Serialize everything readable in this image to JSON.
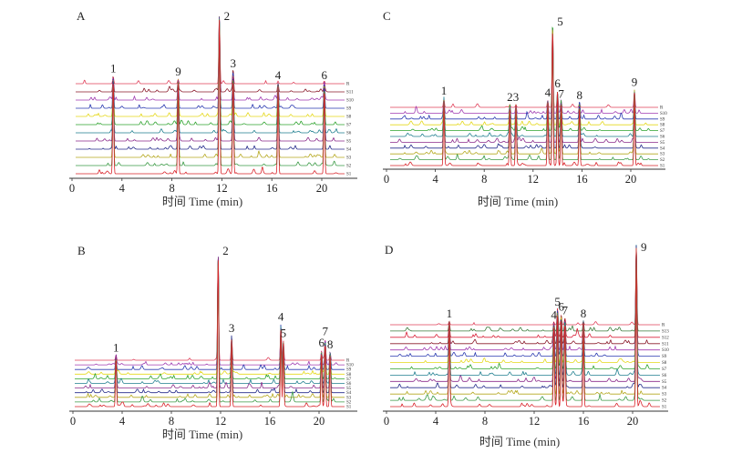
{
  "chart_data": [
    {
      "type": "line",
      "title": "A",
      "xlabel": "时间 Time (min)",
      "xlim": [
        0,
        22
      ],
      "xticks": [
        0,
        4,
        8,
        12,
        16,
        20
      ],
      "series": [
        "S1",
        "S2",
        "S3",
        "S4",
        "S5",
        "S6",
        "S7",
        "S8",
        "S9",
        "S10",
        "S11",
        "R"
      ],
      "peaks": [
        {
          "label": "1",
          "time": 3.3,
          "rel_intensity": 0.6
        },
        {
          "label": "9",
          "time": 8.5,
          "rel_intensity": 0.58
        },
        {
          "label": "2",
          "time": 11.8,
          "rel_intensity": 1.0
        },
        {
          "label": "3",
          "time": 12.9,
          "rel_intensity": 0.63
        },
        {
          "label": "4",
          "time": 16.5,
          "rel_intensity": 0.56
        },
        {
          "label": "6",
          "time": 20.2,
          "rel_intensity": 0.56
        }
      ]
    },
    {
      "type": "line",
      "title": "B",
      "xlabel": "时间 Time (min)",
      "xlim": [
        0,
        22
      ],
      "xticks": [
        0,
        4,
        8,
        12,
        16,
        20
      ],
      "series": [
        "S1",
        "S2",
        "S3",
        "S4",
        "S5",
        "S6",
        "S7",
        "S8",
        "S9",
        "S10",
        "R"
      ],
      "peaks": [
        {
          "label": "1",
          "time": 3.5,
          "rel_intensity": 0.32
        },
        {
          "label": "2",
          "time": 11.8,
          "rel_intensity": 1.0
        },
        {
          "label": "3",
          "time": 12.9,
          "rel_intensity": 0.44
        },
        {
          "label": "4",
          "time": 16.9,
          "rel_intensity": 0.51
        },
        {
          "label": "5",
          "time": 17.1,
          "rel_intensity": 0.41
        },
        {
          "label": "6",
          "time": 20.2,
          "rel_intensity": 0.35
        },
        {
          "label": "7",
          "time": 20.5,
          "rel_intensity": 0.42
        },
        {
          "label": "8",
          "time": 20.9,
          "rel_intensity": 0.34
        }
      ]
    },
    {
      "type": "line",
      "title": "C",
      "xlabel": "时间 Time (min)",
      "xlim": [
        0,
        23
      ],
      "xticks": [
        0,
        4,
        8,
        12,
        16,
        20
      ],
      "series": [
        "S1",
        "S2",
        "S3",
        "S4",
        "S5",
        "S6",
        "S7",
        "S8",
        "S9",
        "S10",
        "R"
      ],
      "peaks": [
        {
          "label": "1",
          "time": 4.7,
          "rel_intensity": 0.45
        },
        {
          "label": "2",
          "time": 10.1,
          "rel_intensity": 0.41
        },
        {
          "label": "3",
          "time": 10.6,
          "rel_intensity": 0.41
        },
        {
          "label": "4",
          "time": 13.2,
          "rel_intensity": 0.44
        },
        {
          "label": "5",
          "time": 13.6,
          "rel_intensity": 1.0
        },
        {
          "label": "6",
          "time": 14.0,
          "rel_intensity": 0.5
        },
        {
          "label": "7",
          "time": 14.3,
          "rel_intensity": 0.43
        },
        {
          "label": "8",
          "time": 15.8,
          "rel_intensity": 0.42
        },
        {
          "label": "9",
          "time": 20.3,
          "rel_intensity": 0.51
        }
      ]
    },
    {
      "type": "line",
      "title": "D",
      "xlabel": "时间 Time (min)",
      "xlim": [
        0,
        23
      ],
      "xticks": [
        0,
        4,
        8,
        12,
        16,
        20
      ],
      "series": [
        "S1",
        "S2",
        "S3",
        "S4",
        "S5",
        "S6",
        "S7",
        "S8",
        "S9",
        "S10",
        "S11",
        "S12",
        "S13",
        "R"
      ],
      "peaks": [
        {
          "label": "1",
          "time": 5.1,
          "rel_intensity": 0.52
        },
        {
          "label": "4",
          "time": 13.6,
          "rel_intensity": 0.51
        },
        {
          "label": "5",
          "time": 13.9,
          "rel_intensity": 0.59
        },
        {
          "label": "6",
          "time": 14.2,
          "rel_intensity": 0.56
        },
        {
          "label": "7",
          "time": 14.5,
          "rel_intensity": 0.54
        },
        {
          "label": "8",
          "time": 16.0,
          "rel_intensity": 0.52
        },
        {
          "label": "9",
          "time": 20.3,
          "rel_intensity": 1.0
        }
      ]
    }
  ],
  "trace_colors": [
    "#d9232a",
    "#3a9a45",
    "#b5a81f",
    "#232a8a",
    "#8a2a8a",
    "#1f7f8f",
    "#2fa32f",
    "#e5d81a",
    "#2a3ab0",
    "#a03ab0",
    "#8a1a2a",
    "#d9233a",
    "#3a7a3a",
    "#b07a2a"
  ],
  "reference_color": "#e0405a"
}
